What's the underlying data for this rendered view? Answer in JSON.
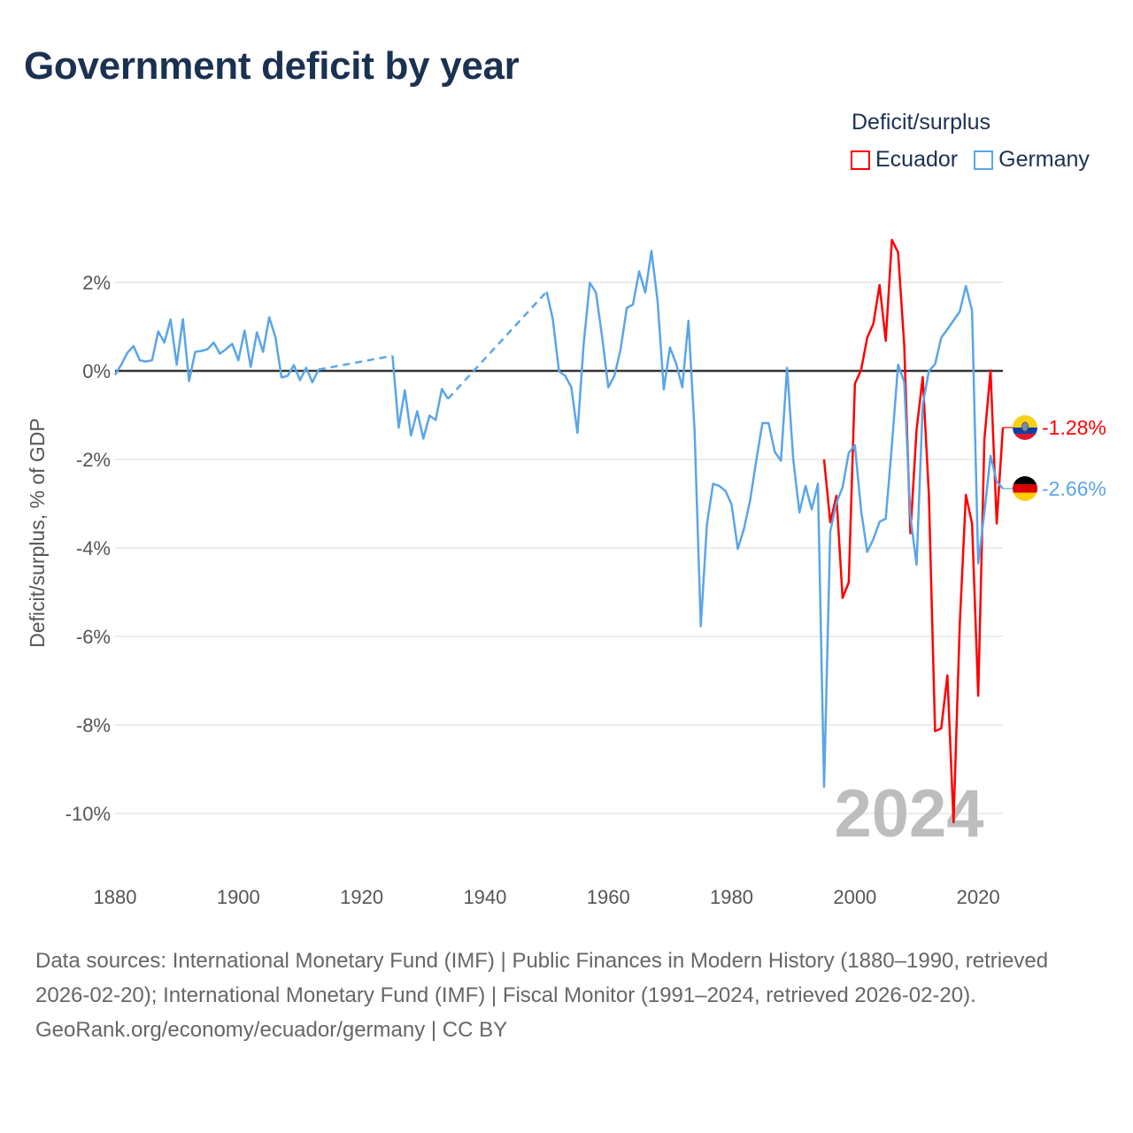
{
  "chart_data": {
    "type": "line",
    "title": "Government deficit by year",
    "ylabel": "Deficit/surplus, % of GDP",
    "xlabel": "",
    "xlim": [
      1880,
      2024
    ],
    "ylim": [
      -11,
      3
    ],
    "x_ticks": [
      1880,
      1900,
      1920,
      1940,
      1960,
      1980,
      2000,
      2020
    ],
    "x_tick_labels": [
      "1880",
      "1900",
      "1920",
      "1940",
      "1960",
      "1980",
      "2000",
      "2020"
    ],
    "y_ticks": [
      2,
      0,
      -2,
      -4,
      -6,
      -8,
      -10
    ],
    "y_tick_labels": [
      "2%",
      "0%",
      "-2%",
      "-4%",
      "-6%",
      "-8%",
      "-10%"
    ],
    "grid": true,
    "legend_title": "Deficit/surplus",
    "legend_position": "top-right",
    "year_watermark": "2024",
    "series": [
      {
        "name": "Ecuador",
        "color": "#ff0000",
        "start_year": 1995,
        "end_label": "-1.28%",
        "flag": "ecuador-flag",
        "values": [
          -2.0,
          -3.42,
          -2.82,
          -5.13,
          -4.78,
          -0.29,
          0.02,
          0.75,
          1.07,
          1.94,
          0.68,
          2.96,
          2.68,
          0.58,
          -3.67,
          -1.33,
          -0.14,
          -2.8,
          -8.14,
          -8.08,
          -6.88,
          -10.2,
          -5.75,
          -2.8,
          -3.45,
          -7.34,
          -1.55,
          0.01,
          -3.45,
          -1.28
        ]
      },
      {
        "name": "Germany",
        "color": "#5aa5e8",
        "start_year": 1880,
        "end_label": "-2.66%",
        "flag": "germany-flag",
        "values": [
          -0.09,
          0.14,
          0.41,
          0.56,
          0.24,
          0.21,
          0.24,
          0.89,
          0.64,
          1.16,
          0.14,
          1.17,
          -0.23,
          0.43,
          0.45,
          0.49,
          0.64,
          0.39,
          0.49,
          0.61,
          0.24,
          0.91,
          0.09,
          0.87,
          0.43,
          1.21,
          0.77,
          -0.15,
          -0.11,
          0.13,
          -0.21,
          0.07,
          -0.26,
          0.03,
          null,
          null,
          null,
          null,
          null,
          null,
          null,
          null,
          null,
          null,
          null,
          0.34,
          -1.28,
          -0.44,
          -1.46,
          -0.91,
          -1.53,
          -1.01,
          -1.11,
          -0.41,
          -0.63,
          null,
          null,
          null,
          null,
          null,
          null,
          null,
          null,
          null,
          null,
          null,
          null,
          null,
          null,
          null,
          1.79,
          1.17,
          -0.01,
          -0.11,
          -0.37,
          -1.4,
          0.6,
          1.99,
          1.77,
          0.77,
          -0.37,
          -0.11,
          0.49,
          1.42,
          1.5,
          2.25,
          1.77,
          2.71,
          1.57,
          -0.42,
          0.53,
          0.17,
          -0.37,
          1.13,
          -1.37,
          -5.77,
          -3.47,
          -2.55,
          -2.6,
          -2.71,
          -3.02,
          -4.02,
          -3.57,
          -2.93,
          -2.03,
          -1.18,
          -1.18,
          -1.83,
          -2.03,
          0.07,
          -2.0,
          -3.2,
          -2.6,
          -3.13,
          -2.55,
          -9.4,
          -3.63,
          -2.98,
          -2.63,
          -1.85,
          -1.68,
          -3.15,
          -4.09,
          -3.8,
          -3.41,
          -3.34,
          -1.68,
          0.14,
          -0.25,
          -3.28,
          -4.38,
          -0.77,
          0.0,
          0.15,
          0.75,
          0.94,
          1.14,
          1.34,
          1.92,
          1.36,
          -4.35,
          -3.2,
          -1.92,
          -2.5,
          -2.66
        ]
      }
    ]
  },
  "footer": {
    "sources": "Data sources: International Monetary Fund (IMF) | Public Finances in Modern History (1880–1990, retrieved 2026-02-20); International Monetary Fund (IMF) | Fiscal Monitor (1991–2024, retrieved 2026-02-20).",
    "credit": "GeoRank.org/economy/ecuador/germany | CC BY"
  }
}
